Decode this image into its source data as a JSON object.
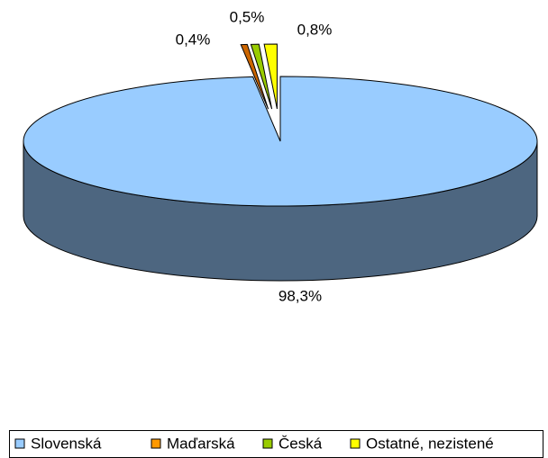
{
  "chart_data": {
    "type": "pie3d",
    "categories": [
      "Slovenská",
      "Maďarská",
      "Česká",
      "Ostatné, nezistené"
    ],
    "values": [
      98.3,
      0.4,
      0.5,
      0.8
    ],
    "value_labels": [
      "98,3%",
      "0,4%",
      "0,5%",
      "0,8%"
    ],
    "colors": [
      "#99ccff",
      "#cc6600",
      "#99cc00",
      "#ffff00"
    ],
    "legend_colors": [
      "#99ccff",
      "#ff9900",
      "#99cc00",
      "#ffff00"
    ],
    "side_color": "#4d6680",
    "legend": "bottom"
  }
}
